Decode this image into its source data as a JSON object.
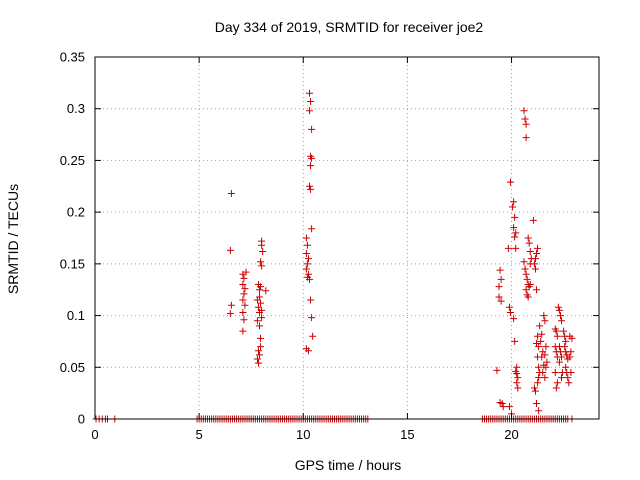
{
  "chart_data": {
    "type": "scatter",
    "title": "Day 334 of 2019, SRMTID for receiver joe2",
    "xlabel": "GPS time / hours",
    "ylabel": "SRMTID / TECUs",
    "xlim": [
      0,
      24.2
    ],
    "ylim": [
      0,
      0.35
    ],
    "xticks": [
      0,
      5,
      10,
      15,
      20
    ],
    "xtick_labels": [
      "0",
      "5",
      "10",
      "15",
      "20"
    ],
    "yticks": [
      0,
      0.05,
      0.1,
      0.15,
      0.2,
      0.25,
      0.3,
      0.35
    ],
    "ytick_labels": [
      "0",
      "0.05",
      "0.1",
      "0.15",
      "0.2",
      "0.25",
      "0.3",
      "0.35"
    ],
    "grid": true,
    "marker": "+",
    "color": "#cc0000",
    "series": [
      {
        "name": "SRMTID",
        "points": [
          [
            0.05,
            0
          ],
          [
            0.2,
            0
          ],
          [
            0.35,
            0
          ],
          [
            0.5,
            0
          ],
          [
            0.6,
            0
          ],
          [
            0.95,
            0
          ],
          [
            4.9,
            0
          ],
          [
            5.0,
            0
          ],
          [
            5.1,
            0
          ],
          [
            5.2,
            0
          ],
          [
            5.3,
            0
          ],
          [
            5.4,
            0
          ],
          [
            5.5,
            0
          ],
          [
            5.6,
            0
          ],
          [
            5.7,
            0
          ],
          [
            5.8,
            0
          ],
          [
            5.9,
            0
          ],
          [
            6.0,
            0
          ],
          [
            6.1,
            0
          ],
          [
            6.2,
            0
          ],
          [
            6.3,
            0
          ],
          [
            6.4,
            0
          ],
          [
            6.5,
            0
          ],
          [
            6.6,
            0
          ],
          [
            6.7,
            0
          ],
          [
            6.8,
            0
          ],
          [
            6.9,
            0
          ],
          [
            7.0,
            0
          ],
          [
            7.1,
            0
          ],
          [
            7.2,
            0
          ],
          [
            7.3,
            0
          ],
          [
            7.4,
            0
          ],
          [
            7.5,
            0
          ],
          [
            7.6,
            0
          ],
          [
            7.7,
            0
          ],
          [
            7.8,
            0
          ],
          [
            7.9,
            0
          ],
          [
            8.0,
            0
          ],
          [
            8.1,
            0
          ],
          [
            8.2,
            0
          ],
          [
            8.3,
            0
          ],
          [
            8.4,
            0
          ],
          [
            8.5,
            0
          ],
          [
            8.6,
            0
          ],
          [
            8.7,
            0
          ],
          [
            8.8,
            0
          ],
          [
            8.9,
            0
          ],
          [
            9.0,
            0
          ],
          [
            9.1,
            0
          ],
          [
            9.2,
            0
          ],
          [
            9.3,
            0
          ],
          [
            9.4,
            0
          ],
          [
            9.5,
            0
          ],
          [
            9.6,
            0
          ],
          [
            9.7,
            0
          ],
          [
            9.8,
            0
          ],
          [
            9.9,
            0
          ],
          [
            10.0,
            0
          ],
          [
            10.1,
            0
          ],
          [
            10.2,
            0
          ],
          [
            10.3,
            0
          ],
          [
            10.4,
            0
          ],
          [
            10.5,
            0
          ],
          [
            10.6,
            0
          ],
          [
            10.7,
            0
          ],
          [
            10.8,
            0
          ],
          [
            10.9,
            0
          ],
          [
            11.0,
            0
          ],
          [
            11.1,
            0
          ],
          [
            11.2,
            0
          ],
          [
            11.3,
            0
          ],
          [
            11.4,
            0
          ],
          [
            11.5,
            0
          ],
          [
            11.6,
            0
          ],
          [
            11.7,
            0
          ],
          [
            11.8,
            0
          ],
          [
            11.9,
            0
          ],
          [
            12.0,
            0
          ],
          [
            12.1,
            0
          ],
          [
            12.2,
            0
          ],
          [
            12.3,
            0
          ],
          [
            12.4,
            0
          ],
          [
            12.5,
            0
          ],
          [
            12.6,
            0
          ],
          [
            12.7,
            0
          ],
          [
            12.8,
            0
          ],
          [
            12.9,
            0
          ],
          [
            13.0,
            0
          ],
          [
            13.1,
            0
          ],
          [
            18.6,
            0
          ],
          [
            18.7,
            0
          ],
          [
            18.8,
            0
          ],
          [
            18.9,
            0
          ],
          [
            19.0,
            0
          ],
          [
            19.1,
            0
          ],
          [
            19.2,
            0
          ],
          [
            19.3,
            0
          ],
          [
            19.4,
            0
          ],
          [
            19.5,
            0
          ],
          [
            19.6,
            0
          ],
          [
            19.7,
            0
          ],
          [
            19.8,
            0
          ],
          [
            19.9,
            0
          ],
          [
            20.0,
            0
          ],
          [
            20.1,
            0
          ],
          [
            20.2,
            0
          ],
          [
            20.3,
            0
          ],
          [
            20.4,
            0
          ],
          [
            20.5,
            0
          ],
          [
            20.6,
            0
          ],
          [
            20.7,
            0
          ],
          [
            20.8,
            0
          ],
          [
            20.9,
            0
          ],
          [
            21.0,
            0
          ],
          [
            21.1,
            0
          ],
          [
            21.2,
            0
          ],
          [
            21.3,
            0
          ],
          [
            21.4,
            0
          ],
          [
            21.5,
            0
          ],
          [
            21.6,
            0
          ],
          [
            21.7,
            0
          ],
          [
            21.8,
            0
          ],
          [
            21.9,
            0
          ],
          [
            22.0,
            0
          ],
          [
            22.1,
            0
          ],
          [
            22.2,
            0
          ],
          [
            22.3,
            0
          ],
          [
            22.4,
            0
          ],
          [
            22.5,
            0
          ],
          [
            22.6,
            0
          ],
          [
            22.7,
            0
          ],
          [
            22.9,
            0
          ],
          [
            6.55,
            0.218
          ],
          [
            6.5,
            0.163
          ],
          [
            6.55,
            0.11
          ],
          [
            6.5,
            0.102
          ],
          [
            7.1,
            0.14
          ],
          [
            7.15,
            0.136
          ],
          [
            7.1,
            0.13
          ],
          [
            7.2,
            0.126
          ],
          [
            7.15,
            0.121
          ],
          [
            7.1,
            0.115
          ],
          [
            7.2,
            0.11
          ],
          [
            7.1,
            0.103
          ],
          [
            7.15,
            0.096
          ],
          [
            7.1,
            0.085
          ],
          [
            7.25,
            0.142
          ],
          [
            7.85,
            0.13
          ],
          [
            7.9,
            0.125
          ],
          [
            7.8,
            0.115
          ],
          [
            7.95,
            0.112
          ],
          [
            7.85,
            0.108
          ],
          [
            7.9,
            0.103
          ],
          [
            8.0,
            0.098
          ],
          [
            7.8,
            0.095
          ],
          [
            7.9,
            0.09
          ],
          [
            7.95,
            0.07
          ],
          [
            7.85,
            0.066
          ],
          [
            7.9,
            0.062
          ],
          [
            7.8,
            0.058
          ],
          [
            7.85,
            0.054
          ],
          [
            7.95,
            0.078
          ],
          [
            8.0,
            0.105
          ],
          [
            8.0,
            0.172
          ],
          [
            8.0,
            0.168
          ],
          [
            8.05,
            0.162
          ],
          [
            7.95,
            0.152
          ],
          [
            8.0,
            0.148
          ],
          [
            8.2,
            0.124
          ],
          [
            7.95,
            0.128
          ],
          [
            7.9,
            0.118
          ],
          [
            10.15,
            0.175
          ],
          [
            10.2,
            0.168
          ],
          [
            10.15,
            0.16
          ],
          [
            10.25,
            0.155
          ],
          [
            10.2,
            0.15
          ],
          [
            10.15,
            0.145
          ],
          [
            10.25,
            0.14
          ],
          [
            10.2,
            0.137
          ],
          [
            10.3,
            0.135
          ],
          [
            10.15,
            0.068
          ],
          [
            10.25,
            0.066
          ],
          [
            10.3,
            0.225
          ],
          [
            10.35,
            0.222
          ],
          [
            10.3,
            0.315
          ],
          [
            10.35,
            0.307
          ],
          [
            10.3,
            0.298
          ],
          [
            10.4,
            0.28
          ],
          [
            10.35,
            0.254
          ],
          [
            10.4,
            0.252
          ],
          [
            10.35,
            0.245
          ],
          [
            10.4,
            0.184
          ],
          [
            10.35,
            0.115
          ],
          [
            10.4,
            0.098
          ],
          [
            10.45,
            0.08
          ],
          [
            19.3,
            0.047
          ],
          [
            19.4,
            0.128
          ],
          [
            19.45,
            0.144
          ],
          [
            19.5,
            0.135
          ],
          [
            19.4,
            0.118
          ],
          [
            19.5,
            0.114
          ],
          [
            19.45,
            0.016
          ],
          [
            19.55,
            0.015
          ],
          [
            19.6,
            0.012
          ],
          [
            19.85,
            0.165
          ],
          [
            19.9,
            0.108
          ],
          [
            19.95,
            0.103
          ],
          [
            19.9,
            0.012
          ],
          [
            20.0,
            0.005
          ],
          [
            19.95,
            0.229
          ],
          [
            20.05,
            0.205
          ],
          [
            20.1,
            0.21
          ],
          [
            20.15,
            0.195
          ],
          [
            20.1,
            0.185
          ],
          [
            20.2,
            0.18
          ],
          [
            20.15,
            0.176
          ],
          [
            20.2,
            0.165
          ],
          [
            20.1,
            0.097
          ],
          [
            20.15,
            0.075
          ],
          [
            20.2,
            0.046
          ],
          [
            20.25,
            0.044
          ],
          [
            20.3,
            0.04
          ],
          [
            20.25,
            0.035
          ],
          [
            20.3,
            0.03
          ],
          [
            20.25,
            0.05
          ],
          [
            20.6,
            0.298
          ],
          [
            20.65,
            0.29
          ],
          [
            20.7,
            0.285
          ],
          [
            20.7,
            0.272
          ],
          [
            20.6,
            0.152
          ],
          [
            20.65,
            0.145
          ],
          [
            20.7,
            0.14
          ],
          [
            20.75,
            0.135
          ],
          [
            20.8,
            0.13
          ],
          [
            20.7,
            0.125
          ],
          [
            20.75,
            0.12
          ],
          [
            20.8,
            0.118
          ],
          [
            20.9,
            0.13
          ],
          [
            20.85,
            0.128
          ],
          [
            20.8,
            0.175
          ],
          [
            20.85,
            0.17
          ],
          [
            20.9,
            0.162
          ],
          [
            20.95,
            0.155
          ],
          [
            20.9,
            0.15
          ],
          [
            21.05,
            0.192
          ],
          [
            21.1,
            0.15
          ],
          [
            21.15,
            0.145
          ],
          [
            21.2,
            0.16
          ],
          [
            21.15,
            0.155
          ],
          [
            21.25,
            0.165
          ],
          [
            21.2,
            0.125
          ],
          [
            21.25,
            0.08
          ],
          [
            21.2,
            0.073
          ],
          [
            21.3,
            0.07
          ],
          [
            21.25,
            0.06
          ],
          [
            21.3,
            0.05
          ],
          [
            21.35,
            0.045
          ],
          [
            21.3,
            0.04
          ],
          [
            21.25,
            0.035
          ],
          [
            21.4,
            0.075
          ],
          [
            21.35,
            0.09
          ],
          [
            21.45,
            0.082
          ],
          [
            21.5,
            0.065
          ],
          [
            21.45,
            0.06
          ],
          [
            21.55,
            0.052
          ],
          [
            21.5,
            0.045
          ],
          [
            21.6,
            0.04
          ],
          [
            21.55,
            0.1
          ],
          [
            21.6,
            0.095
          ],
          [
            21.65,
            0.07
          ],
          [
            21.6,
            0.062
          ],
          [
            21.7,
            0.055
          ],
          [
            21.65,
            0.05
          ],
          [
            21.1,
            0.03
          ],
          [
            21.15,
            0.027
          ],
          [
            21.2,
            0.015
          ],
          [
            21.3,
            0.008
          ],
          [
            22.1,
            0.087
          ],
          [
            22.15,
            0.085
          ],
          [
            22.2,
            0.08
          ],
          [
            22.1,
            0.07
          ],
          [
            22.15,
            0.065
          ],
          [
            22.2,
            0.06
          ],
          [
            22.1,
            0.045
          ],
          [
            22.2,
            0.035
          ],
          [
            22.15,
            0.03
          ],
          [
            22.25,
            0.108
          ],
          [
            22.3,
            0.105
          ],
          [
            22.35,
            0.1
          ],
          [
            22.4,
            0.095
          ],
          [
            22.3,
            0.07
          ],
          [
            22.35,
            0.065
          ],
          [
            22.4,
            0.06
          ],
          [
            22.3,
            0.055
          ],
          [
            22.45,
            0.045
          ],
          [
            22.4,
            0.04
          ],
          [
            22.5,
            0.085
          ],
          [
            22.55,
            0.08
          ],
          [
            22.6,
            0.075
          ],
          [
            22.55,
            0.07
          ],
          [
            22.6,
            0.065
          ],
          [
            22.65,
            0.062
          ],
          [
            22.7,
            0.058
          ],
          [
            22.6,
            0.05
          ],
          [
            22.65,
            0.045
          ],
          [
            22.7,
            0.04
          ],
          [
            22.75,
            0.035
          ],
          [
            22.8,
            0.06
          ],
          [
            22.85,
            0.065
          ],
          [
            22.8,
            0.08
          ],
          [
            22.9,
            0.078
          ],
          [
            22.85,
            0.045
          ]
        ]
      }
    ]
  }
}
